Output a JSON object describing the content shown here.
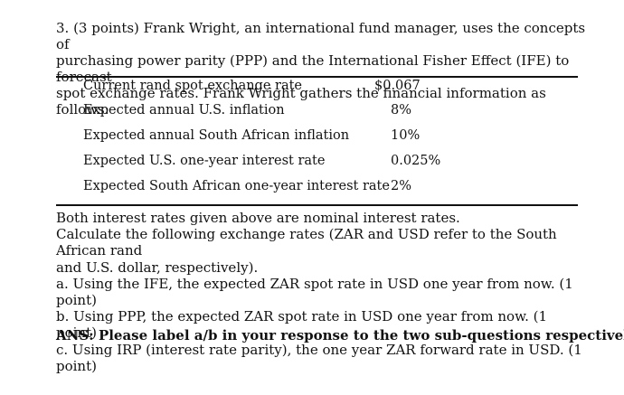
{
  "question": {
    "intro_lines": [
      "3.  (3 points) Frank Wright, an international fund manager, uses the concepts of",
      "purchasing power parity (PPP) and the International Fisher Effect (IFE) to forecast",
      "spot exchange rates. Frank Wright gathers the financial information as follows:"
    ],
    "table": [
      {
        "label": "Current rand spot exchange rate",
        "value": "$0.067"
      },
      {
        "label": "Expected annual U.S. inflation",
        "value": "8%"
      },
      {
        "label": "Expected annual South African inflation",
        "value": "10%"
      },
      {
        "label": "Expected U.S. one-year interest rate",
        "value": "0.025%"
      },
      {
        "label": "Expected South African one-year interest rate",
        "value": "2%"
      }
    ],
    "body_lines": [
      "Both interest rates given above are nominal interest rates.",
      "Calculate the following exchange rates (ZAR and USD refer to the South African rand",
      "and U.S. dollar, respectively).",
      "a. Using the IFE, the expected ZAR spot rate in USD one year from now. (1 point)",
      "b. Using PPP, the expected ZAR spot rate in USD one year from now. (1 point)",
      "c. Using IRP  (interest rate parity), the one year ZAR forward rate in USD. (1 point)"
    ],
    "ans": "ANS: Please label a/b in your response to the two sub-questions respectively."
  }
}
